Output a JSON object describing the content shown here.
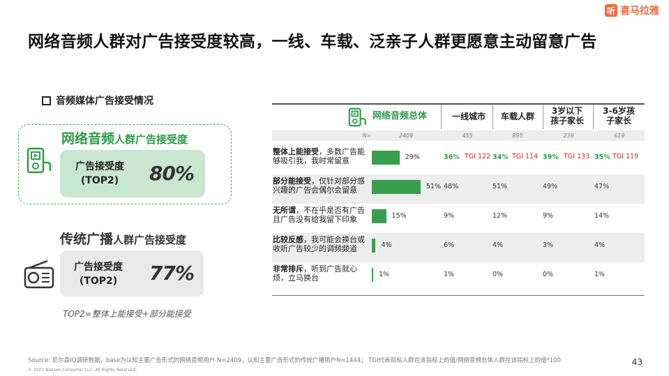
{
  "brand": {
    "logo_glyph": "听",
    "name": "喜马拉雅",
    "color": "#f26a3d"
  },
  "title": "网络音频人群对广告接受度较高，一线、车载、泛亲子人群更愿意主动留意广告",
  "section_title": "音频媒体广告接受情况",
  "network": {
    "head_big": "网络音频",
    "head_small": "人群广告接受度",
    "card_label_1": "广告接受度",
    "card_label_2": "(TOP2)",
    "card_value": "80%"
  },
  "traditional": {
    "head_big": "传统广播",
    "head_small": "人群广告接受度",
    "card_label_1": "广告接受度",
    "card_label_2": "(TOP2)",
    "card_value": "77%"
  },
  "note": "TOP2=整体上能接受+部分能接受",
  "table": {
    "columns": [
      {
        "label": "网络音频总体",
        "n": "2409"
      },
      {
        "label": "一线城市",
        "n": "455"
      },
      {
        "label": "车载人群",
        "n": "895"
      },
      {
        "label": "3岁以下孩子家长",
        "line1": "3岁以下",
        "line2": "孩子家长",
        "n": "239"
      },
      {
        "label": "3-6岁孩子家长",
        "line1": "3-6岁孩",
        "line2": "子家长",
        "n": "619"
      }
    ],
    "n_label": "N=",
    "rows": [
      {
        "bold": "整体上能接受",
        "rest": "，多数广告能够吸引我，我时常留意",
        "total": "29%",
        "total_value": 29,
        "c1": "36%",
        "c1_tgi": "TGI 122",
        "c2": "34%",
        "c2_tgi": "TGI 114",
        "c3": "39%",
        "c3_tgi": "TGI 133",
        "c4": "35%",
        "c4_tgi": "TGI 119"
      },
      {
        "bold": "部分能接受",
        "rest": "，仅针对部分感兴趣的广告会偶尔会留意",
        "total": "51%",
        "total_value": 51,
        "c1": "48%",
        "c2": "51%",
        "c3": "49%",
        "c4": "47%"
      },
      {
        "bold": "无所谓",
        "rest": "，不在乎是否有广告且广告没有给我留下印象",
        "total": "15%",
        "total_value": 15,
        "c1": "9%",
        "c2": "12%",
        "c3": "9%",
        "c4": "14%"
      },
      {
        "bold": "比较反感",
        "rest": "，我可能会换台或收听广告较少的调频频道",
        "total": "4%",
        "total_value": 4,
        "c1": "6%",
        "c2": "4%",
        "c3": "3%",
        "c4": "4%"
      },
      {
        "bold": "非常排斥",
        "rest": "，听到广告就心烦，立马换台",
        "total": "1%",
        "total_value": 1,
        "c1": "1%",
        "c2": "0%",
        "c3": "0%",
        "c4": "1%"
      }
    ]
  },
  "source": "Source: 尼尔森IQ调研数据，base为认知主要广告形式的网络音频用户 N=2409，认知主要广告形式的传统广播用户N=1444；  TGI代表目标人群在该指标上的值/网络音频总体人群在该指标上的值*100",
  "copyright": "© 2021 Nielsen Consumer LLC. All Rights Reserved.",
  "page_number": "43",
  "colors": {
    "accent_green": "#3a9e4f",
    "tgi_red": "#c62828"
  }
}
